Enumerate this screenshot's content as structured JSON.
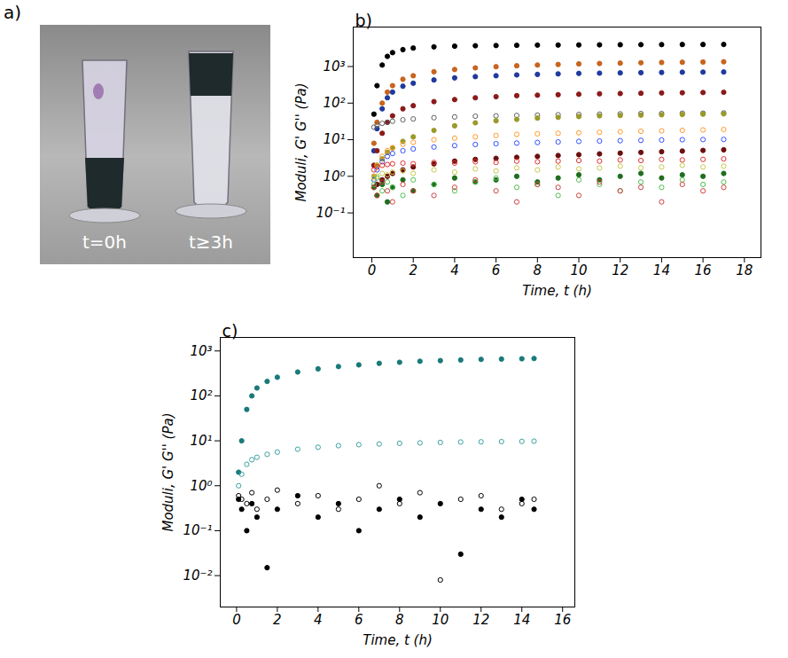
{
  "panel_a": {
    "label": "a)",
    "annotations": [
      "t=0h",
      "t≥3h"
    ]
  },
  "chart_data": [
    {
      "type": "scatter",
      "title": "b)",
      "x_label": "Time, t (h)",
      "y_label": "Moduli, G' G'' (Pa)",
      "log": "y",
      "grid": false,
      "xlim": [
        -0.9,
        18.8
      ],
      "xticks": [
        0,
        2,
        4,
        6,
        8,
        10,
        12,
        14,
        16,
        18
      ],
      "ylim": [
        0.006,
        12000
      ],
      "yticks": [
        {
          "value": 0.1,
          "label": "10⁻¹"
        },
        {
          "value": 1,
          "label": "10⁰"
        },
        {
          "value": 10,
          "label": "10¹"
        },
        {
          "value": 100,
          "label": "10²"
        },
        {
          "value": 1000,
          "label": "10³"
        }
      ],
      "x": [
        0.1,
        0.25,
        0.5,
        0.75,
        1,
        1.5,
        2,
        3,
        4,
        5,
        6,
        7,
        8,
        9,
        10,
        11,
        12,
        13,
        14,
        15,
        16,
        17
      ],
      "series": [
        {
          "color": "#000000",
          "marker": "filled",
          "values": [
            50,
            300,
            1100,
            1900,
            2400,
            2900,
            3200,
            3450,
            3600,
            3700,
            3750,
            3800,
            3850,
            3870,
            3900,
            3920,
            3940,
            3960,
            3980,
            4000,
            4000,
            4020
          ]
        },
        {
          "color": "#c8641e",
          "marker": "filled",
          "values": [
            8,
            30,
            100,
            200,
            300,
            450,
            560,
            720,
            830,
            920,
            990,
            1050,
            1100,
            1140,
            1180,
            1210,
            1240,
            1270,
            1290,
            1310,
            1330,
            1350
          ]
        },
        {
          "color": "#1f3a9e",
          "marker": "filled",
          "values": [
            5,
            20,
            70,
            140,
            200,
            290,
            350,
            430,
            490,
            530,
            560,
            590,
            610,
            630,
            650,
            660,
            670,
            680,
            690,
            700,
            705,
            710
          ]
        },
        {
          "color": "#8b1a1a",
          "marker": "filled",
          "values": [
            2,
            5,
            15,
            30,
            45,
            70,
            85,
            110,
            125,
            140,
            150,
            160,
            165,
            170,
            175,
            180,
            183,
            186,
            190,
            192,
            195,
            198
          ]
        },
        {
          "color": "#606060",
          "marker": "open",
          "values": [
            22,
            25,
            28,
            30,
            32,
            35,
            37,
            40,
            42,
            44,
            45,
            46,
            47,
            48,
            49,
            50,
            51,
            52,
            52,
            53,
            53,
            54
          ]
        },
        {
          "color": "#9a9a2a",
          "marker": "filled",
          "values": [
            1,
            2,
            3,
            4.5,
            6,
            9,
            12,
            18,
            24,
            29,
            33,
            36,
            39,
            41,
            43,
            45,
            46,
            47,
            48,
            49,
            50,
            51
          ]
        },
        {
          "color": "#ff9a2a",
          "marker": "open",
          "values": [
            1,
            2,
            3.5,
            5,
            6,
            7.5,
            8.5,
            10,
            11,
            12,
            13,
            14,
            14.5,
            15,
            15.5,
            16,
            16.5,
            17,
            17.5,
            18,
            18.5,
            19
          ]
        },
        {
          "color": "#3050ff",
          "marker": "open",
          "values": [
            0.8,
            1.5,
            2.5,
            3.5,
            4.2,
            5,
            5.6,
            6.3,
            6.9,
            7.4,
            7.8,
            8.1,
            8.4,
            8.7,
            9,
            9.2,
            9.4,
            9.6,
            9.8,
            10,
            10.1,
            10.2
          ]
        },
        {
          "color": "#6b0f0f",
          "marker": "filled",
          "values": [
            0.5,
            0.6,
            0.8,
            1,
            1.2,
            1.5,
            1.8,
            2.2,
            2.6,
            2.9,
            3.1,
            3.3,
            3.5,
            3.7,
            3.9,
            4.1,
            4.3,
            4.5,
            4.7,
            4.9,
            5.1,
            5.3
          ]
        },
        {
          "color": "#e03030",
          "marker": "open",
          "values": [
            1.5,
            1.8,
            2,
            2.1,
            2.2,
            2.3,
            2.2,
            2.4,
            2.3,
            2.5,
            2.4,
            2.6,
            2.5,
            2.6,
            2.7,
            2.6,
            2.8,
            2.7,
            2.9,
            2.8,
            2.9,
            3
          ]
        },
        {
          "color": "#c8c850",
          "marker": "open",
          "values": [
            0.9,
            1,
            1.2,
            1.1,
            1.3,
            1.4,
            1.2,
            1.5,
            1.3,
            1.6,
            1.4,
            1.7,
            1.5,
            1.8,
            1.6,
            1.7,
            1.9,
            1.7,
            1.8,
            2,
            1.8,
            1.9
          ]
        },
        {
          "color": "#1f6e1f",
          "marker": "filled",
          "values": [
            0.5,
            0.3,
            0.6,
            0.2,
            0.5,
            0.8,
            0.4,
            0.6,
            0.9,
            0.7,
            0.8,
            1,
            0.7,
            0.9,
            1.1,
            0.8,
            1,
            1.2,
            0.9,
            1.1,
            1,
            1.2
          ]
        },
        {
          "color": "#50c050",
          "marker": "open",
          "values": [
            0.6,
            0.9,
            0.4,
            0.7,
            0.5,
            0.3,
            0.8,
            0.6,
            0.4,
            0.7,
            0.9,
            0.5,
            0.6,
            0.3,
            0.8,
            0.6,
            0.4,
            0.7,
            0.5,
            0.8,
            0.6,
            0.7
          ]
        },
        {
          "color": "#d04040",
          "marker": "open",
          "values": [
            0.5,
            0.3,
            0.7,
            0.4,
            0.2,
            0.6,
            0.4,
            0.3,
            0.5,
            0.8,
            0.4,
            0.2,
            0.6,
            0.5,
            0.3,
            0.7,
            0.4,
            0.5,
            0.2,
            0.6,
            0.4,
            0.5
          ]
        }
      ]
    },
    {
      "type": "scatter",
      "title": "c)",
      "x_label": "Time, t (h)",
      "y_label": "Moduli, G' G'' (Pa)",
      "log": "y",
      "grid": false,
      "xlim": [
        -0.8,
        16.6
      ],
      "xticks": [
        0,
        2,
        4,
        6,
        8,
        10,
        12,
        14,
        16
      ],
      "ylim": [
        0.002,
        2000
      ],
      "yticks": [
        {
          "value": 0.01,
          "label": "10⁻²"
        },
        {
          "value": 0.1,
          "label": "10⁻¹"
        },
        {
          "value": 1,
          "label": "10⁰"
        },
        {
          "value": 10,
          "label": "10¹"
        },
        {
          "value": 100,
          "label": "10²"
        },
        {
          "value": 1000,
          "label": "10³"
        }
      ],
      "x": [
        0.1,
        0.25,
        0.5,
        0.75,
        1,
        1.5,
        2,
        3,
        4,
        5,
        6,
        7,
        8,
        9,
        10,
        11,
        12,
        13,
        14,
        14.6
      ],
      "series": [
        {
          "color": "#1a7a7a",
          "marker": "filled",
          "values": [
            2,
            10,
            50,
            100,
            150,
            210,
            260,
            340,
            400,
            450,
            490,
            530,
            560,
            590,
            610,
            630,
            650,
            660,
            670,
            680
          ]
        },
        {
          "color": "#3aa0a0",
          "marker": "open",
          "values": [
            1,
            1.8,
            3,
            3.8,
            4.3,
            5,
            5.6,
            6.5,
            7.2,
            7.8,
            8.2,
            8.5,
            8.8,
            9,
            9.2,
            9.4,
            9.5,
            9.6,
            9.7,
            9.8
          ]
        },
        {
          "color": "#000000",
          "marker": "filled",
          "values": [
            0.5,
            0.3,
            0.1,
            0.4,
            0.2,
            0.015,
            0.3,
            0.6,
            0.2,
            0.4,
            0.1,
            0.3,
            0.5,
            0.2,
            0.4,
            0.03,
            0.3,
            0.2,
            0.5,
            0.3
          ]
        },
        {
          "color": "#000000",
          "marker": "open",
          "values": [
            0.6,
            0.5,
            0.4,
            0.7,
            0.3,
            0.5,
            0.8,
            0.4,
            0.6,
            0.3,
            0.5,
            1,
            0.4,
            0.7,
            0.008,
            0.5,
            0.6,
            0.3,
            0.4,
            0.5
          ]
        }
      ]
    }
  ]
}
